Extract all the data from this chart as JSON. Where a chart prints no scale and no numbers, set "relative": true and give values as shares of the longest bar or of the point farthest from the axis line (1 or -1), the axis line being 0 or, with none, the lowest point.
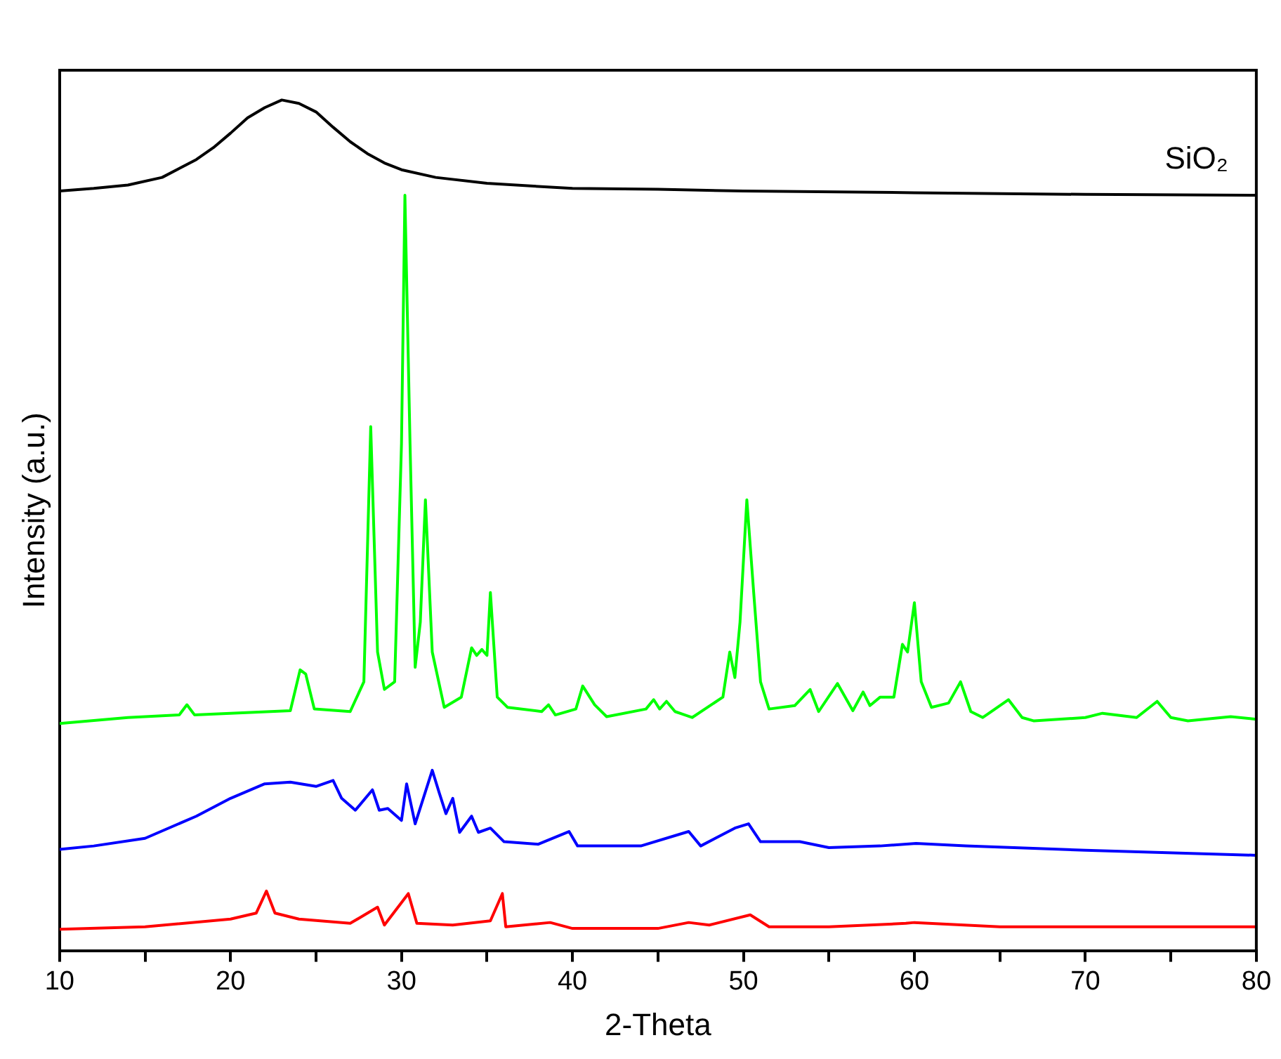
{
  "chart_data": {
    "type": "line",
    "xlabel": "2-Theta",
    "ylabel": "Intensity (a.u.)",
    "relative": true,
    "grid": false,
    "legend": false,
    "marker": "none",
    "line_style": "solid",
    "xlim": [
      10,
      80
    ],
    "xticks": [
      10,
      {
        "value": 15,
        "label": null
      },
      20,
      {
        "value": 25,
        "label": null
      },
      30,
      {
        "value": 35,
        "label": null
      },
      40,
      {
        "value": 45,
        "label": null
      },
      50,
      {
        "value": 55,
        "label": null
      },
      60,
      {
        "value": 65,
        "label": null
      },
      70,
      {
        "value": 75,
        "label": null
      },
      80
    ],
    "series": [
      {
        "name": "SiO₂",
        "color": "#000000",
        "x": [
          10,
          12,
          14,
          16,
          18,
          19,
          20,
          21,
          22,
          23,
          24,
          25,
          26,
          27,
          28,
          29,
          30,
          32,
          35,
          40,
          45,
          50,
          60,
          70,
          80
        ],
        "values": [
          0.893,
          0.896,
          0.9,
          0.909,
          0.93,
          0.944,
          0.961,
          0.979,
          0.991,
          1.0,
          0.996,
          0.986,
          0.968,
          0.951,
          0.937,
          0.926,
          0.918,
          0.909,
          0.902,
          0.896,
          0.895,
          0.893,
          0.891,
          0.889,
          0.888
        ]
      },
      {
        "color": "#00ff00",
        "x": [
          10,
          14,
          17,
          17.45,
          17.9,
          20,
          23.5,
          24.07,
          24.4,
          24.9,
          27,
          27.8,
          28.2,
          28.6,
          29,
          29.6,
          30.0,
          30.2,
          30.5,
          30.8,
          31.1,
          31.4,
          31.8,
          32.5,
          33.5,
          34.1,
          34.4,
          34.7,
          35.0,
          35.2,
          35.6,
          36.2,
          38.2,
          38.6,
          39,
          40.2,
          40.6,
          41.3,
          42,
          44.3,
          44.75,
          45.1,
          45.5,
          46,
          47,
          48.8,
          49.2,
          49.5,
          49.8,
          50.2,
          50.6,
          51,
          51.5,
          53,
          53.9,
          54.4,
          55.5,
          56.4,
          57.0,
          57.4,
          58.0,
          58.8,
          59.3,
          59.6,
          60.0,
          60.4,
          61,
          62,
          62.7,
          63.3,
          64,
          65.5,
          66.3,
          67,
          70,
          71,
          73,
          74.2,
          75,
          76,
          78.5,
          80
        ],
        "values": [
          0.267,
          0.274,
          0.277,
          0.289,
          0.277,
          0.279,
          0.282,
          0.33,
          0.325,
          0.284,
          0.281,
          0.316,
          0.616,
          0.351,
          0.307,
          0.316,
          0.596,
          0.888,
          0.596,
          0.333,
          0.386,
          0.53,
          0.351,
          0.286,
          0.298,
          0.356,
          0.347,
          0.354,
          0.347,
          0.421,
          0.298,
          0.286,
          0.281,
          0.289,
          0.277,
          0.284,
          0.311,
          0.289,
          0.275,
          0.284,
          0.295,
          0.284,
          0.293,
          0.281,
          0.274,
          0.298,
          0.351,
          0.321,
          0.386,
          0.53,
          0.421,
          0.316,
          0.284,
          0.288,
          0.307,
          0.281,
          0.314,
          0.282,
          0.304,
          0.288,
          0.298,
          0.298,
          0.36,
          0.351,
          0.409,
          0.316,
          0.286,
          0.291,
          0.316,
          0.281,
          0.274,
          0.295,
          0.274,
          0.27,
          0.274,
          0.279,
          0.274,
          0.293,
          0.274,
          0.27,
          0.275,
          0.272
        ]
      },
      {
        "color": "#0000ff",
        "x": [
          10,
          12,
          15,
          18,
          20,
          22,
          23.5,
          25,
          26,
          26.5,
          27.3,
          28.3,
          28.7,
          29.2,
          30,
          30.3,
          30.8,
          31.8,
          32.2,
          32.6,
          33,
          33.4,
          34.1,
          34.5,
          35.2,
          36,
          38,
          39.8,
          40.3,
          44,
          46.8,
          47.5,
          49.5,
          50.3,
          51,
          53.3,
          55,
          58,
          60.1,
          63,
          70,
          80
        ],
        "values": [
          0.119,
          0.123,
          0.132,
          0.158,
          0.179,
          0.196,
          0.198,
          0.193,
          0.2,
          0.179,
          0.165,
          0.189,
          0.165,
          0.167,
          0.153,
          0.196,
          0.149,
          0.212,
          0.186,
          0.161,
          0.179,
          0.139,
          0.158,
          0.139,
          0.144,
          0.128,
          0.125,
          0.14,
          0.123,
          0.123,
          0.14,
          0.123,
          0.144,
          0.149,
          0.128,
          0.128,
          0.121,
          0.123,
          0.126,
          0.123,
          0.118,
          0.112
        ]
      },
      {
        "color": "#ff0000",
        "x": [
          10,
          15,
          20,
          21.5,
          22.1,
          22.6,
          24,
          27,
          28.6,
          29,
          30.4,
          30.9,
          33,
          35.2,
          35.9,
          36.1,
          38.7,
          40,
          45,
          46.8,
          48,
          50.4,
          51.5,
          55,
          59.5,
          60,
          65,
          80
        ],
        "values": [
          0.025,
          0.028,
          0.037,
          0.044,
          0.07,
          0.044,
          0.037,
          0.032,
          0.051,
          0.03,
          0.067,
          0.032,
          0.03,
          0.035,
          0.067,
          0.028,
          0.033,
          0.026,
          0.026,
          0.033,
          0.03,
          0.042,
          0.028,
          0.028,
          0.032,
          0.033,
          0.028,
          0.028
        ]
      }
    ]
  }
}
